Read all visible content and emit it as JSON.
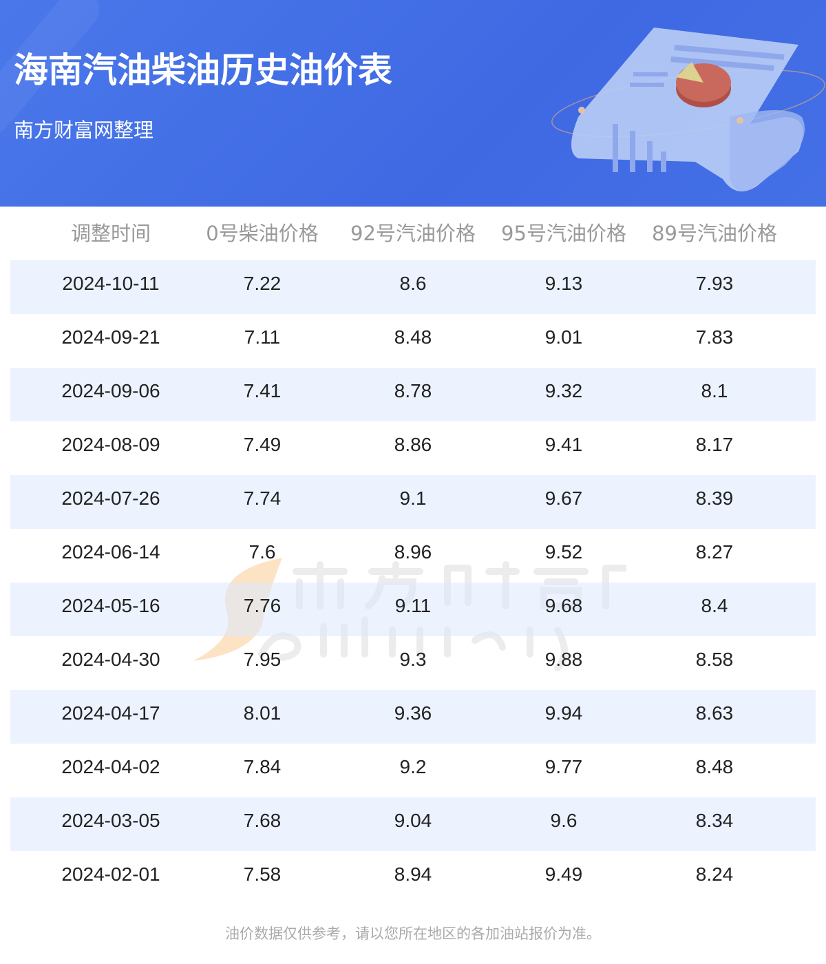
{
  "header": {
    "title": "海南汽油柴油历史油价表",
    "subtitle": "南方财富网整理"
  },
  "table": {
    "columns": [
      "调整时间",
      "0号柴油价格",
      "92号汽油价格",
      "95号汽油价格",
      "89号汽油价格"
    ],
    "rows": [
      [
        "2024-10-11",
        "7.22",
        "8.6",
        "9.13",
        "7.93"
      ],
      [
        "2024-09-21",
        "7.11",
        "8.48",
        "9.01",
        "7.83"
      ],
      [
        "2024-09-06",
        "7.41",
        "8.78",
        "9.32",
        "8.1"
      ],
      [
        "2024-08-09",
        "7.49",
        "8.86",
        "9.41",
        "8.17"
      ],
      [
        "2024-07-26",
        "7.74",
        "9.1",
        "9.67",
        "8.39"
      ],
      [
        "2024-06-14",
        "7.6",
        "8.96",
        "9.52",
        "8.27"
      ],
      [
        "2024-05-16",
        "7.76",
        "9.11",
        "9.68",
        "8.4"
      ],
      [
        "2024-04-30",
        "7.95",
        "9.3",
        "9.88",
        "8.58"
      ],
      [
        "2024-04-17",
        "8.01",
        "9.36",
        "9.94",
        "8.63"
      ],
      [
        "2024-04-02",
        "7.84",
        "9.2",
        "9.77",
        "8.48"
      ],
      [
        "2024-03-05",
        "7.68",
        "9.04",
        "9.6",
        "8.34"
      ],
      [
        "2024-02-01",
        "7.58",
        "8.94",
        "9.49",
        "8.24"
      ]
    ]
  },
  "footer": {
    "note": "油价数据仅供参考，请以您所在地区的各加油站报价为准。"
  },
  "watermark": {
    "logo_cn": "南方财富网",
    "logo_en": "southmoney.com"
  },
  "colors": {
    "banner": "#4470e6",
    "row_stripe": "#eef5ff",
    "header_text": "#999999",
    "footer_text": "#aaaaaa"
  }
}
